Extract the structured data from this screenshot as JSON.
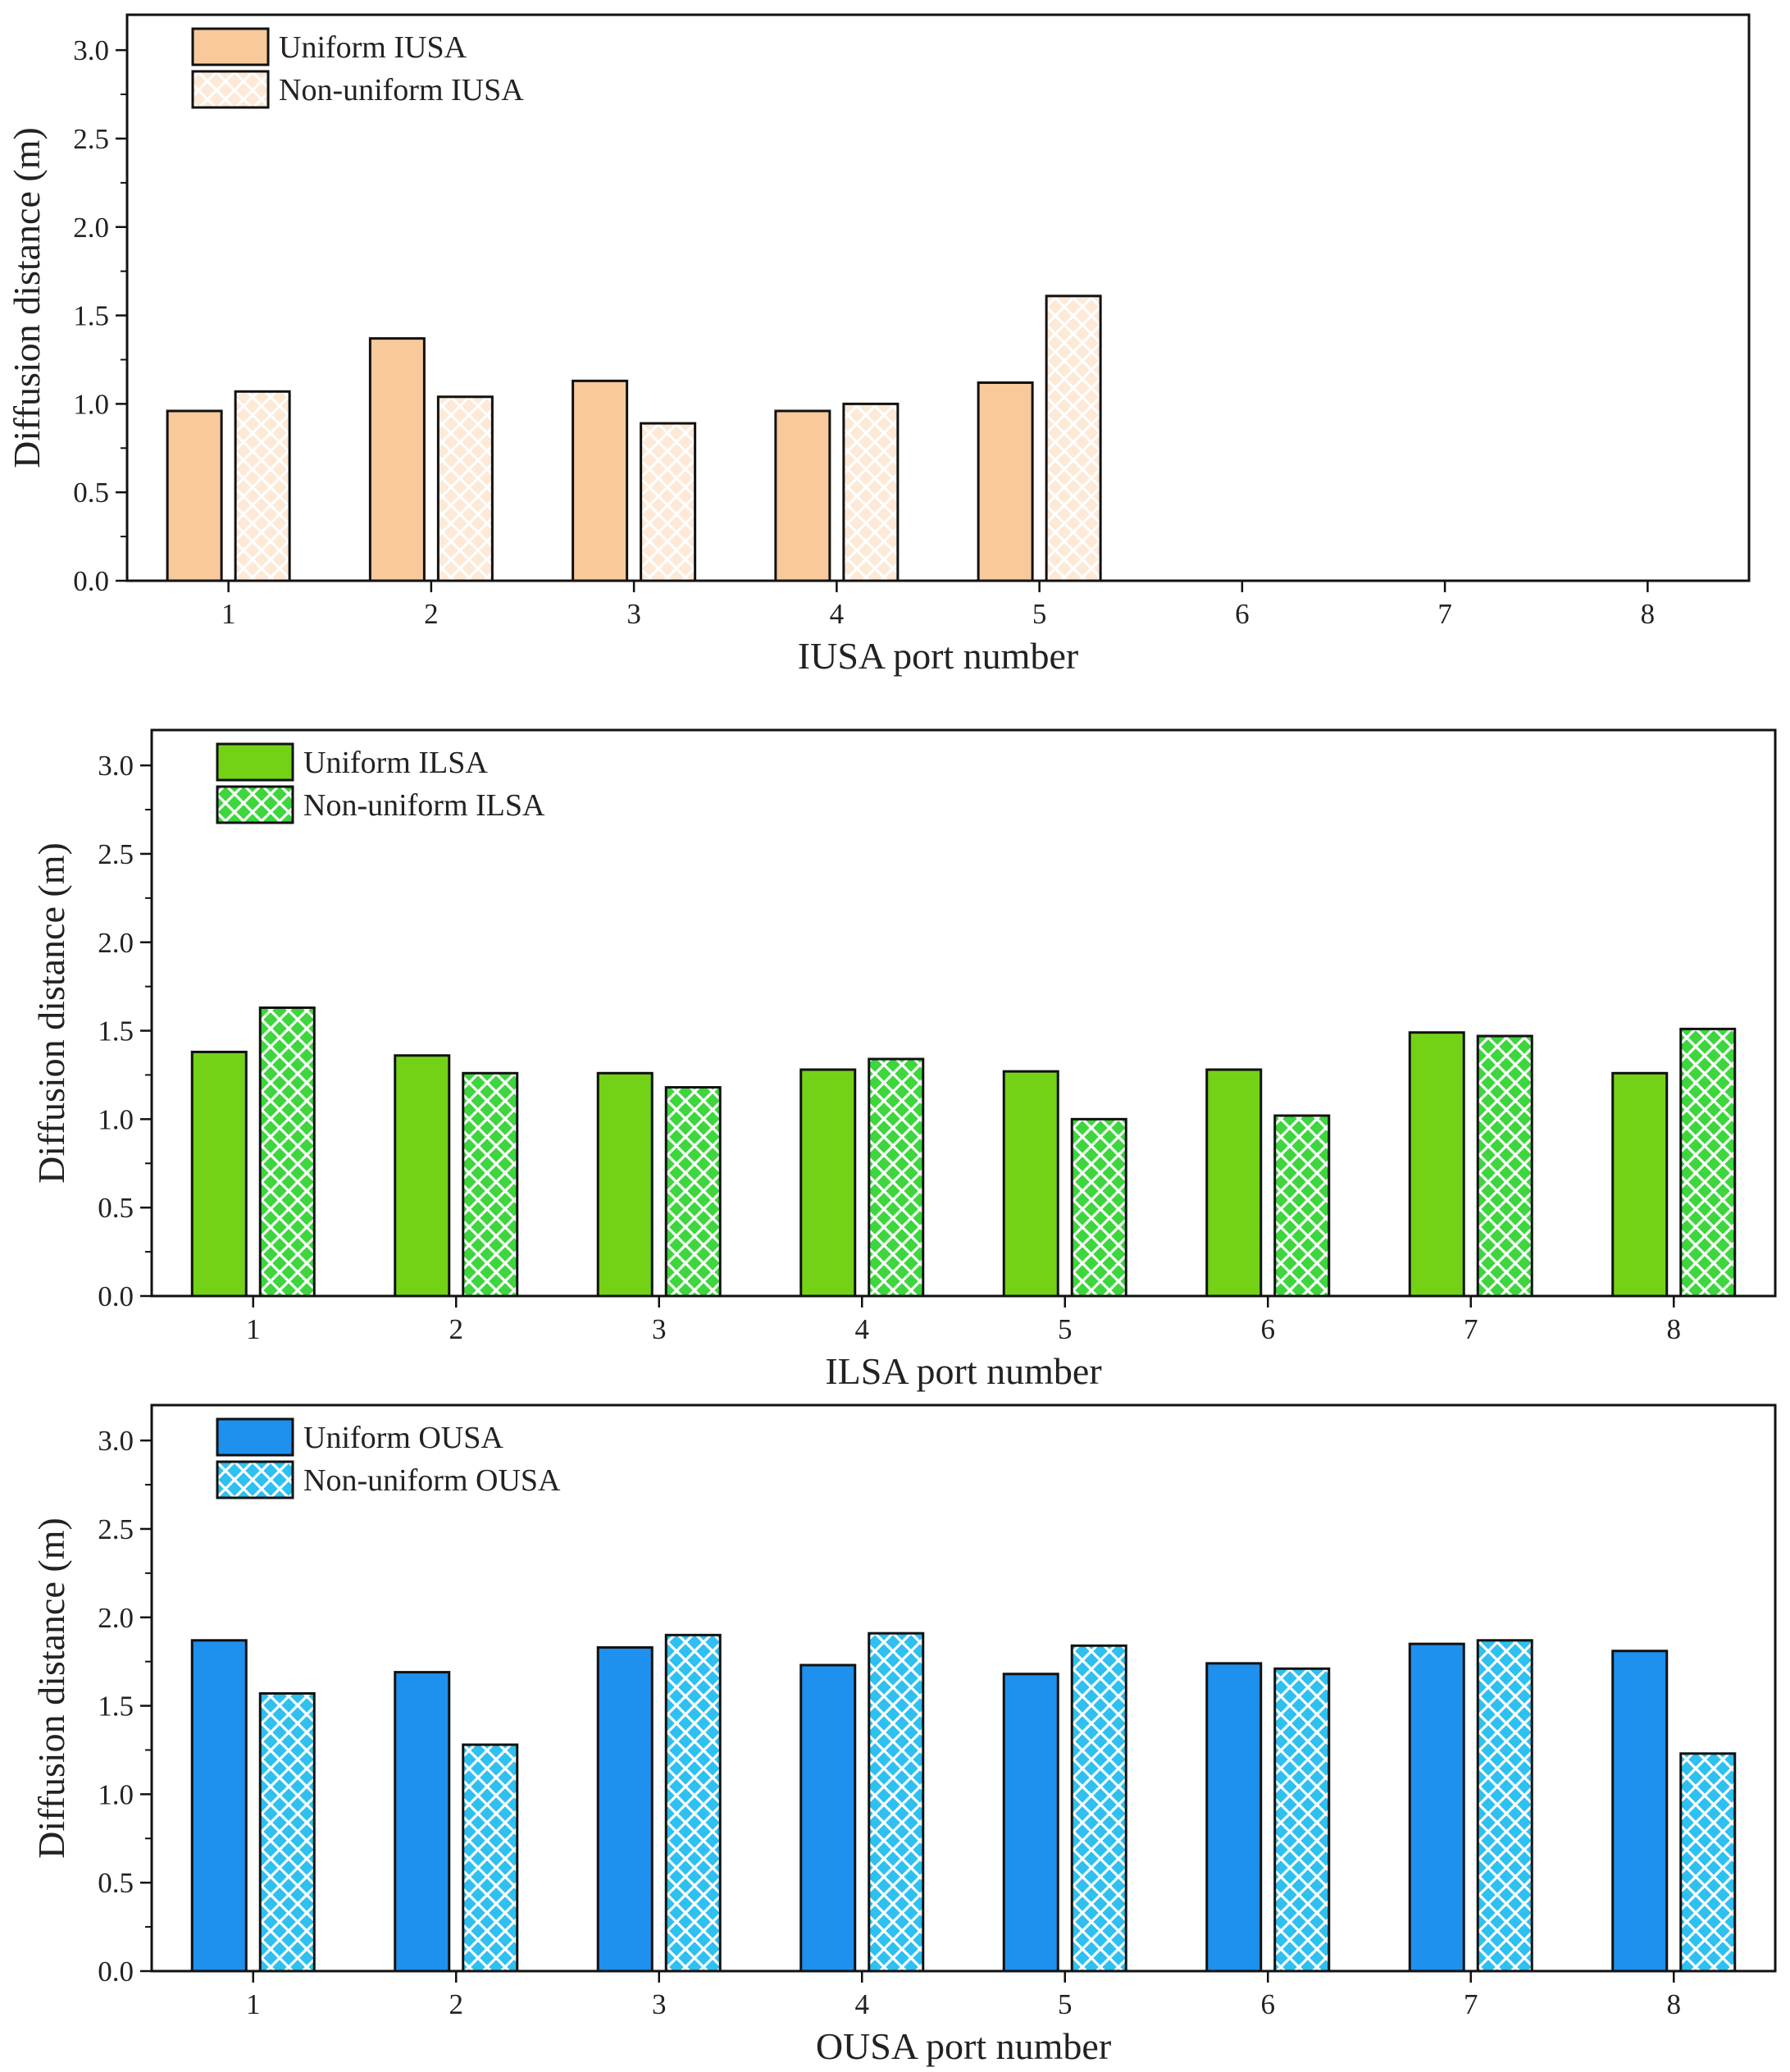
{
  "chart_data": [
    {
      "type": "bar",
      "title": "",
      "xlabel": "IUSA port number",
      "ylabel": "Diffusion distance (m)",
      "ylim": [
        0,
        3.2
      ],
      "yticks": [
        "0.0",
        "0.5",
        "1.0",
        "1.5",
        "2.0",
        "2.5",
        "3.0"
      ],
      "categories": [
        "1",
        "2",
        "3",
        "4",
        "5",
        "6",
        "7",
        "8"
      ],
      "legend_position": "top-left",
      "colors": {
        "uniform": "#f7c99b",
        "nonuniform_bg": "#fde9d6",
        "nonuniform_pattern": "#ffffff"
      },
      "series": [
        {
          "name": "Uniform IUSA",
          "pattern": "solid",
          "values": [
            0.96,
            1.37,
            1.13,
            0.96,
            1.12,
            null,
            null,
            null
          ]
        },
        {
          "name": "Non-uniform IUSA",
          "pattern": "crosshatch",
          "values": [
            1.07,
            1.04,
            0.89,
            1.0,
            1.61,
            null,
            null,
            null
          ]
        }
      ]
    },
    {
      "type": "bar",
      "title": "",
      "xlabel": "ILSA port number",
      "ylabel": "Diffusion distance (m)",
      "ylim": [
        0,
        3.2
      ],
      "yticks": [
        "0.0",
        "0.5",
        "1.0",
        "1.5",
        "2.0",
        "2.5",
        "3.0"
      ],
      "categories": [
        "1",
        "2",
        "3",
        "4",
        "5",
        "6",
        "7",
        "8"
      ],
      "legend_position": "top-left",
      "colors": {
        "uniform": "#73d216",
        "nonuniform_bg": "#3dd63d",
        "nonuniform_pattern": "#ffffff"
      },
      "series": [
        {
          "name": "Uniform ILSA",
          "pattern": "solid",
          "values": [
            1.38,
            1.36,
            1.26,
            1.28,
            1.27,
            1.28,
            1.49,
            1.26
          ]
        },
        {
          "name": "Non-uniform ILSA",
          "pattern": "crosshatch",
          "values": [
            1.63,
            1.26,
            1.18,
            1.34,
            1.0,
            1.02,
            1.47,
            1.51
          ]
        }
      ]
    },
    {
      "type": "bar",
      "title": "",
      "xlabel": "OUSA port number",
      "ylabel": "Diffusion distance (m)",
      "ylim": [
        0,
        3.2
      ],
      "yticks": [
        "0.0",
        "0.5",
        "1.0",
        "1.5",
        "2.0",
        "2.5",
        "3.0"
      ],
      "categories": [
        "1",
        "2",
        "3",
        "4",
        "5",
        "6",
        "7",
        "8"
      ],
      "legend_position": "top-left",
      "colors": {
        "uniform": "#1e90ee",
        "nonuniform_bg": "#2ec0f0",
        "nonuniform_pattern": "#ffffff"
      },
      "series": [
        {
          "name": "Uniform OUSA",
          "pattern": "solid",
          "values": [
            1.87,
            1.69,
            1.83,
            1.73,
            1.68,
            1.74,
            1.85,
            1.81
          ]
        },
        {
          "name": "Non-uniform OUSA",
          "pattern": "crosshatch",
          "values": [
            1.57,
            1.28,
            1.9,
            1.91,
            1.84,
            1.71,
            1.87,
            1.23
          ]
        }
      ]
    }
  ]
}
